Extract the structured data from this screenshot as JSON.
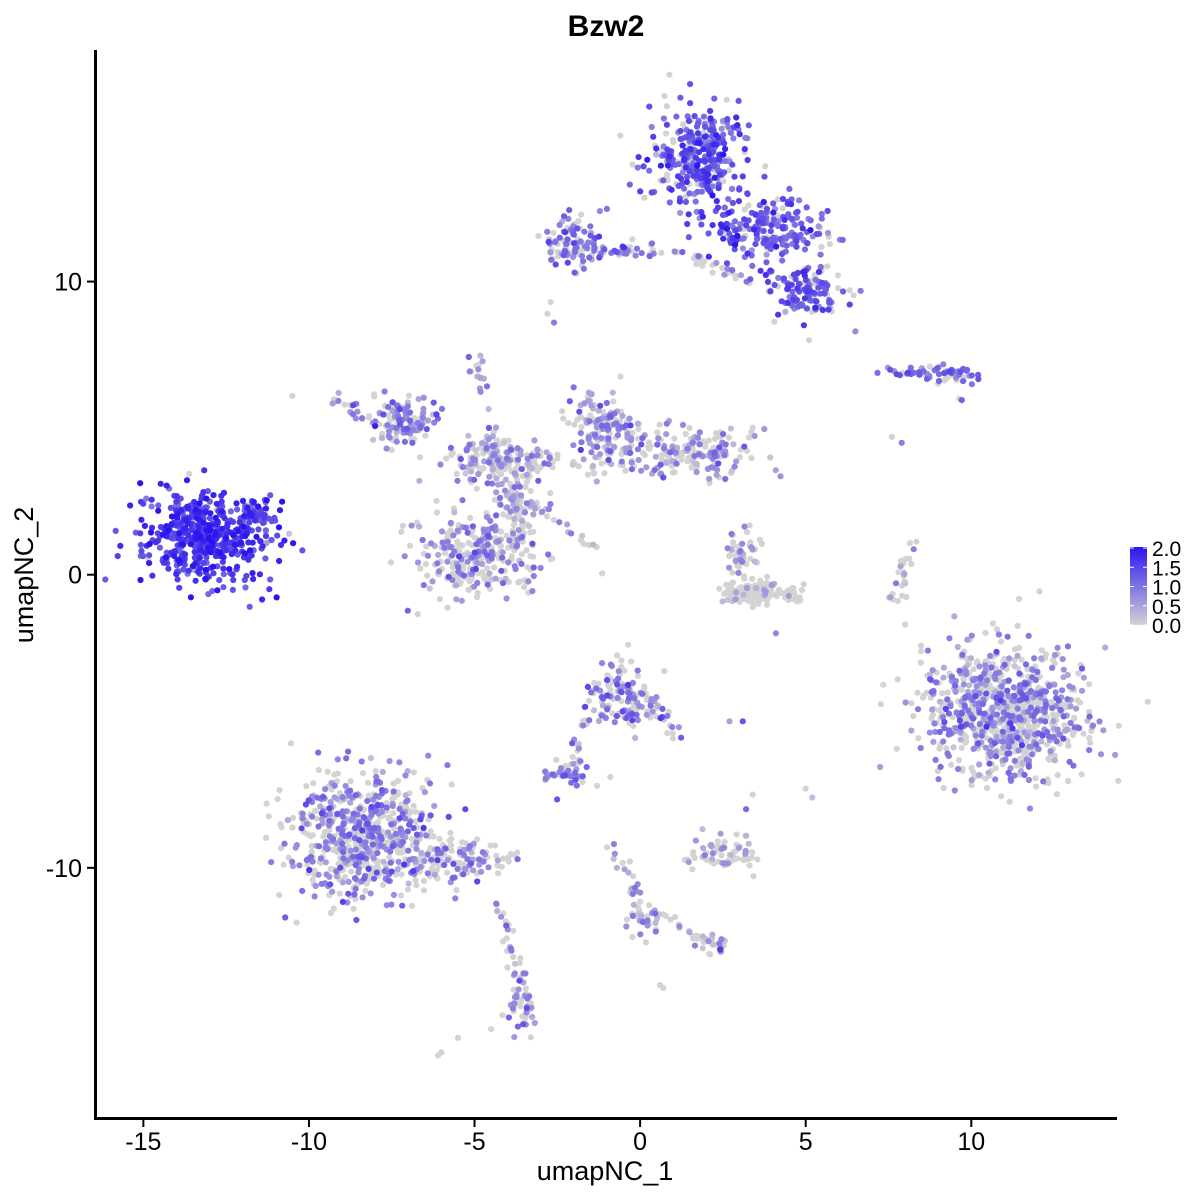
{
  "chart_data": {
    "type": "scatter",
    "title": "Bzw2",
    "xlabel": "umapNC_1",
    "ylabel": "umapNC_2",
    "xlim": [
      -16.4,
      14.4
    ],
    "ylim": [
      -18.5,
      17.9
    ],
    "xticks": [
      {
        "value": -15,
        "label": "-15"
      },
      {
        "value": -10,
        "label": "-10"
      },
      {
        "value": -5,
        "label": "-5"
      },
      {
        "value": 0,
        "label": "0"
      },
      {
        "value": 5,
        "label": "5"
      },
      {
        "value": 10,
        "label": "10"
      }
    ],
    "yticks": [
      {
        "value": -10,
        "label": "-10"
      },
      {
        "value": 0,
        "label": "0"
      },
      {
        "value": 10,
        "label": "10"
      }
    ],
    "grid": false,
    "color_scale": {
      "low_color": "#d3d3d3",
      "high_color": "#2b14f0",
      "min": 0.0,
      "max": 2.0,
      "legend_position": "right",
      "legend_ticks": [
        {
          "value": 2.0,
          "label": "2.0"
        },
        {
          "value": 1.5,
          "label": "1.5"
        },
        {
          "value": 1.0,
          "label": "1.0"
        },
        {
          "value": 0.5,
          "label": "0.5"
        },
        {
          "value": 0.0,
          "label": "0.0"
        }
      ]
    },
    "clusters": [
      {
        "cx": -13.1,
        "cy": 1.3,
        "sx": 1.05,
        "sy": 0.9,
        "n": 520,
        "expr": 1.55,
        "expr_sd": 0.3,
        "pos_frac": 0.97
      },
      {
        "cx": -11.6,
        "cy": 2.1,
        "sx": 0.3,
        "sy": 0.3,
        "n": 30,
        "expr": 1.4,
        "expr_sd": 0.3,
        "pos_frac": 0.9
      },
      {
        "cx": 1.8,
        "cy": 14.2,
        "sx": 0.8,
        "sy": 0.95,
        "n": 330,
        "expr": 1.25,
        "expr_sd": 0.3,
        "pos_frac": 0.85
      },
      {
        "cx": 4.0,
        "cy": 11.8,
        "sx": 0.9,
        "sy": 0.6,
        "n": 190,
        "expr": 1.2,
        "expr_sd": 0.3,
        "pos_frac": 0.8
      },
      {
        "cx": 5.0,
        "cy": 9.7,
        "sx": 0.7,
        "sy": 0.5,
        "n": 120,
        "expr": 1.25,
        "expr_sd": 0.3,
        "pos_frac": 0.8
      },
      {
        "cx": -2.0,
        "cy": 11.3,
        "sx": 0.55,
        "sy": 0.45,
        "n": 95,
        "expr": 1.0,
        "expr_sd": 0.3,
        "pos_frac": 0.7
      },
      {
        "cx": 8.9,
        "cy": 6.9,
        "sx": 0.85,
        "sy": 0.15,
        "n": 55,
        "expr": 1.1,
        "expr_sd": 0.3,
        "pos_frac": 0.75
      },
      {
        "cx": -7.1,
        "cy": 5.3,
        "sx": 0.5,
        "sy": 0.45,
        "n": 110,
        "expr": 0.8,
        "expr_sd": 0.3,
        "pos_frac": 0.6
      },
      {
        "cx": -4.3,
        "cy": 3.9,
        "sx": 0.85,
        "sy": 0.45,
        "n": 150,
        "expr": 0.65,
        "expr_sd": 0.3,
        "pos_frac": 0.5
      },
      {
        "cx": -1.1,
        "cy": 5.0,
        "sx": 0.5,
        "sy": 0.7,
        "n": 140,
        "expr": 0.75,
        "expr_sd": 0.3,
        "pos_frac": 0.55
      },
      {
        "cx": 1.3,
        "cy": 4.2,
        "sx": 1.2,
        "sy": 0.45,
        "n": 200,
        "expr": 0.7,
        "expr_sd": 0.3,
        "pos_frac": 0.45
      },
      {
        "cx": -5.0,
        "cy": 0.7,
        "sx": 1.0,
        "sy": 0.8,
        "n": 280,
        "expr": 0.75,
        "expr_sd": 0.3,
        "pos_frac": 0.45
      },
      {
        "cx": -3.6,
        "cy": 2.4,
        "sx": 0.4,
        "sy": 0.7,
        "n": 50,
        "expr": 0.7,
        "expr_sd": 0.3,
        "pos_frac": 0.5
      },
      {
        "cx": 3.6,
        "cy": -0.6,
        "sx": 0.6,
        "sy": 0.22,
        "n": 170,
        "expr": 0.5,
        "expr_sd": 0.2,
        "pos_frac": 0.1
      },
      {
        "cx": 3.1,
        "cy": 0.6,
        "sx": 0.3,
        "sy": 0.5,
        "n": 45,
        "expr": 0.6,
        "expr_sd": 0.2,
        "pos_frac": 0.3
      },
      {
        "cx": 11.0,
        "cy": -4.7,
        "sx": 1.35,
        "sy": 1.2,
        "n": 850,
        "expr": 0.8,
        "expr_sd": 0.3,
        "pos_frac": 0.5
      },
      {
        "cx": -8.4,
        "cy": -8.8,
        "sx": 1.15,
        "sy": 1.2,
        "n": 620,
        "expr": 0.85,
        "expr_sd": 0.3,
        "pos_frac": 0.5
      },
      {
        "cx": -5.7,
        "cy": -9.7,
        "sx": 0.9,
        "sy": 0.4,
        "n": 130,
        "expr": 0.8,
        "expr_sd": 0.3,
        "pos_frac": 0.4
      },
      {
        "cx": -0.5,
        "cy": -4.1,
        "sx": 0.55,
        "sy": 0.65,
        "n": 110,
        "expr": 0.9,
        "expr_sd": 0.3,
        "pos_frac": 0.55
      },
      {
        "cx": -2.3,
        "cy": -6.8,
        "sx": 0.4,
        "sy": 0.2,
        "n": 40,
        "expr": 0.8,
        "expr_sd": 0.3,
        "pos_frac": 0.6
      },
      {
        "cx": 2.5,
        "cy": -9.5,
        "sx": 0.55,
        "sy": 0.3,
        "n": 70,
        "expr": 0.5,
        "expr_sd": 0.2,
        "pos_frac": 0.25
      },
      {
        "cx": -3.6,
        "cy": -14.8,
        "sx": 0.25,
        "sy": 0.55,
        "n": 45,
        "expr": 0.8,
        "expr_sd": 0.3,
        "pos_frac": 0.55
      },
      {
        "cx": 0.0,
        "cy": -11.8,
        "sx": 0.25,
        "sy": 0.35,
        "n": 25,
        "expr": 0.8,
        "expr_sd": 0.3,
        "pos_frac": 0.6
      },
      {
        "cx": 2.3,
        "cy": -12.6,
        "sx": 0.3,
        "sy": 0.2,
        "n": 18,
        "expr": 0.8,
        "expr_sd": 0.3,
        "pos_frac": 0.6
      }
    ],
    "branches": [
      {
        "from": [
          -9.3,
          6.1
        ],
        "to": [
          -7.5,
          4.7
        ],
        "n": 25,
        "expr": 0.8,
        "pos_frac": 0.6
      },
      {
        "from": [
          -5.0,
          7.5
        ],
        "to": [
          -4.0,
          2.5
        ],
        "n": 40,
        "expr": 0.7,
        "pos_frac": 0.5
      },
      {
        "from": [
          -4.0,
          3.0
        ],
        "to": [
          -1.3,
          0.8
        ],
        "n": 30,
        "expr": 0.7,
        "pos_frac": 0.45
      },
      {
        "from": [
          -3.9,
          2.8
        ],
        "to": [
          -3.4,
          -0.5
        ],
        "n": 25,
        "expr": 0.6,
        "pos_frac": 0.4
      },
      {
        "from": [
          -3.2,
          4.1
        ],
        "to": [
          -1.0,
          3.5
        ],
        "n": 25,
        "expr": 0.6,
        "pos_frac": 0.4
      },
      {
        "from": [
          -3.0,
          11.0
        ],
        "to": [
          1.0,
          11.0
        ],
        "n": 45,
        "expr": 0.9,
        "pos_frac": 0.6
      },
      {
        "from": [
          1.0,
          11.1
        ],
        "to": [
          3.2,
          10.0
        ],
        "n": 30,
        "expr": 0.7,
        "pos_frac": 0.4
      },
      {
        "from": [
          2.5,
          12.5
        ],
        "to": [
          2.8,
          11.3
        ],
        "n": 20,
        "expr": 1.5,
        "pos_frac": 0.9
      },
      {
        "from": [
          8.2,
          1.2
        ],
        "to": [
          7.7,
          -0.8
        ],
        "n": 25,
        "expr": 0.6,
        "pos_frac": 0.4
      },
      {
        "from": [
          -1.3,
          -3.5
        ],
        "to": [
          -2.1,
          -6.6
        ],
        "n": 25,
        "expr": 0.7,
        "pos_frac": 0.5
      },
      {
        "from": [
          0.2,
          -4.0
        ],
        "to": [
          1.1,
          -5.6
        ],
        "n": 25,
        "expr": 0.7,
        "pos_frac": 0.5
      },
      {
        "from": [
          -0.7,
          -9.3
        ],
        "to": [
          0.0,
          -11.6
        ],
        "n": 20,
        "expr": 0.6,
        "pos_frac": 0.45
      },
      {
        "from": [
          0.3,
          -11.5
        ],
        "to": [
          2.3,
          -12.6
        ],
        "n": 25,
        "expr": 0.6,
        "pos_frac": 0.45
      },
      {
        "from": [
          -4.3,
          -11.0
        ],
        "to": [
          -3.6,
          -14.3
        ],
        "n": 25,
        "expr": 0.7,
        "pos_frac": 0.5
      },
      {
        "from": [
          9.5,
          6.0
        ],
        "to": [
          10.0,
          6.9
        ],
        "n": 10,
        "expr": 1.0,
        "pos_frac": 0.6
      }
    ],
    "outliers": [
      [
        -10.5,
        6.1
      ],
      [
        -2.8,
        8.9
      ],
      [
        -2.7,
        9.3
      ],
      [
        -2.6,
        8.6
      ],
      [
        6.5,
        8.3
      ],
      [
        5.1,
        8.0
      ],
      [
        7.6,
        4.7
      ],
      [
        7.9,
        4.5
      ],
      [
        -11.3,
        1.4
      ],
      [
        -10.6,
        1.4
      ],
      [
        4.1,
        -2.0
      ],
      [
        8.0,
        -1.7
      ],
      [
        2.7,
        -5.0
      ],
      [
        3.1,
        -5.0
      ],
      [
        -0.9,
        -6.9
      ],
      [
        -1.3,
        -7.2
      ],
      [
        5.0,
        -7.3
      ],
      [
        5.2,
        -7.6
      ],
      [
        3.2,
        -8.0
      ],
      [
        3.4,
        -7.5
      ],
      [
        -5.5,
        -15.8
      ],
      [
        -6.0,
        -16.3
      ],
      [
        -6.1,
        -16.4
      ],
      [
        0.6,
        -14.0
      ],
      [
        0.7,
        -14.1
      ],
      [
        -4.5,
        -15.5
      ],
      [
        -1.0,
        -9.3
      ],
      [
        -0.8,
        -9.7
      ]
    ]
  }
}
